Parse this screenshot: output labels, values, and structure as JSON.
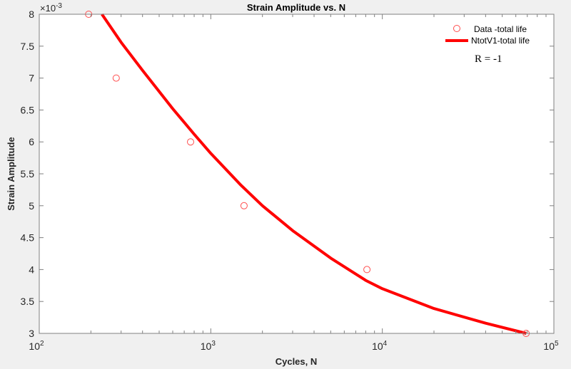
{
  "chart_data": {
    "type": "scatter",
    "title": "Strain Amplitude vs. N",
    "xlabel": "Cycles, N",
    "ylabel": "Strain Amplitude",
    "xscale": "log",
    "xlim": [
      100,
      100000
    ],
    "ylim": [
      0.003,
      0.008
    ],
    "y_exponent_label": "×10",
    "y_exponent_power": "-3",
    "x_ticks": [
      {
        "base": "10",
        "exp": "2",
        "value": 100
      },
      {
        "base": "10",
        "exp": "3",
        "value": 1000
      },
      {
        "base": "10",
        "exp": "4",
        "value": 10000
      },
      {
        "base": "10",
        "exp": "5",
        "value": 100000
      }
    ],
    "y_ticks": [
      "3",
      "3.5",
      "4",
      "4.5",
      "5",
      "5.5",
      "6",
      "6.5",
      "7",
      "7.5",
      "8"
    ],
    "y_tick_values": [
      3,
      3.5,
      4,
      4.5,
      5,
      5.5,
      6,
      6.5,
      7,
      7.5,
      8
    ],
    "grid": false,
    "legend_position": "northeast",
    "series": [
      {
        "name": "Data -total life",
        "type": "scatter",
        "marker": "circle-open",
        "color": "#ff4d4d",
        "x": [
          194,
          281,
          762,
          1563,
          8130,
          68900
        ],
        "y": [
          0.008,
          0.007,
          0.006,
          0.005,
          0.004,
          0.003
        ]
      },
      {
        "name": "NtotV1-total life",
        "type": "line",
        "color": "#ff0000",
        "linewidth": 4,
        "x": [
          232,
          300,
          400,
          600,
          800,
          1000,
          1500,
          2000,
          3000,
          5000,
          8000,
          10000,
          20000,
          40000,
          69000
        ],
        "y": [
          0.008,
          0.00756,
          0.00712,
          0.00652,
          0.00612,
          0.00582,
          0.00532,
          0.005,
          0.00461,
          0.00418,
          0.00383,
          0.0037,
          0.00339,
          0.00316,
          0.003
        ]
      }
    ],
    "annotations": [
      "R = -1"
    ]
  }
}
